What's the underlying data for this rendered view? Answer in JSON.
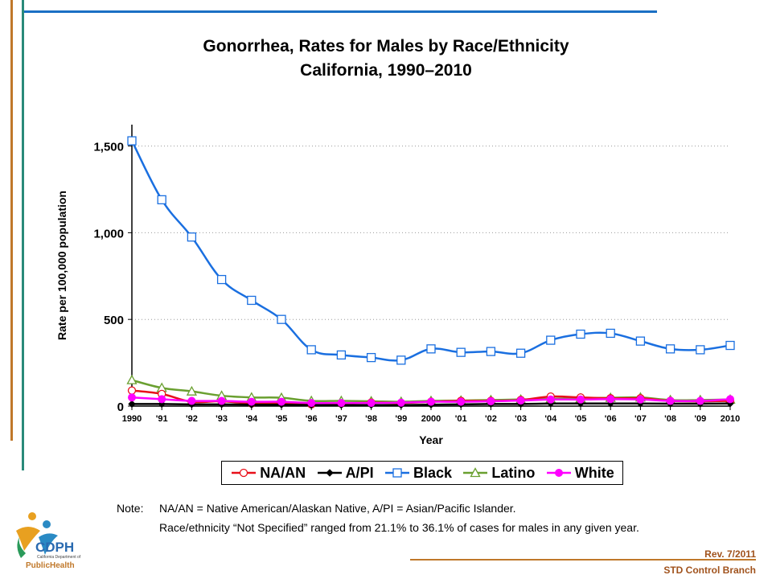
{
  "slide": {
    "note_label": "Note:",
    "note_line1": "NA/AN = Native American/Alaskan Native, A/PI = Asian/Pacific Islander.",
    "note_line2": "Race/ethnicity “Not Specified” ranged from 21.1% to 36.1% of cases for males in any given year.",
    "revision": "Rev. 7/2011",
    "branch": "STD Control Branch",
    "logo_text_main": "CDPH",
    "logo_text_sub": "California Department of",
    "logo_text_ph": "PublicHealth",
    "colors": {
      "accent_blue": "#1a6fc4",
      "accent_orange": "#c0782a",
      "accent_teal": "#2a8a7a"
    }
  },
  "chart_data": {
    "type": "line",
    "title": "Gonorrhea, Rates for Males by Race/Ethnicity",
    "subtitle": "California, 1990–2010",
    "xlabel": "Year",
    "ylabel": "Rate per 100,000 population",
    "ylim": [
      0,
      1600
    ],
    "yticks": [
      0,
      500,
      1000,
      1500
    ],
    "ytick_labels": [
      "0",
      "500",
      "1,000",
      "1,500"
    ],
    "categories": [
      "1990",
      "'91",
      "'92",
      "'93",
      "'94",
      "'95",
      "'96",
      "'97",
      "'98",
      "'99",
      "2000",
      "'01",
      "'02",
      "'03",
      "'04",
      "'05",
      "'06",
      "'07",
      "'08",
      "'09",
      "2010"
    ],
    "grid": true,
    "legend_position": "bottom",
    "series": [
      {
        "name": "NA/AN",
        "color": "#e8101a",
        "marker": "circle",
        "values": [
          90,
          70,
          25,
          28,
          15,
          18,
          10,
          15,
          20,
          18,
          25,
          30,
          30,
          35,
          55,
          50,
          45,
          45,
          30,
          28,
          30
        ]
      },
      {
        "name": "A/PI",
        "color": "#000000",
        "marker": "diamond",
        "values": [
          12,
          12,
          10,
          10,
          8,
          8,
          6,
          6,
          6,
          6,
          8,
          10,
          12,
          12,
          15,
          15,
          15,
          15,
          14,
          14,
          15
        ]
      },
      {
        "name": "Black",
        "color": "#1a6fe0",
        "marker": "square",
        "values": [
          1530,
          1190,
          975,
          730,
          610,
          500,
          325,
          295,
          280,
          265,
          330,
          310,
          315,
          305,
          380,
          415,
          420,
          375,
          330,
          325,
          350
        ]
      },
      {
        "name": "Latino",
        "color": "#6aa030",
        "marker": "triangle",
        "values": [
          150,
          105,
          85,
          60,
          50,
          48,
          30,
          30,
          28,
          25,
          30,
          32,
          35,
          38,
          42,
          45,
          48,
          50,
          35,
          35,
          38
        ]
      },
      {
        "name": "White",
        "color": "#ff00ff",
        "marker": "circle-filled",
        "values": [
          50,
          40,
          30,
          30,
          25,
          25,
          18,
          18,
          18,
          20,
          25,
          25,
          28,
          32,
          38,
          38,
          40,
          38,
          30,
          30,
          40
        ]
      }
    ]
  }
}
